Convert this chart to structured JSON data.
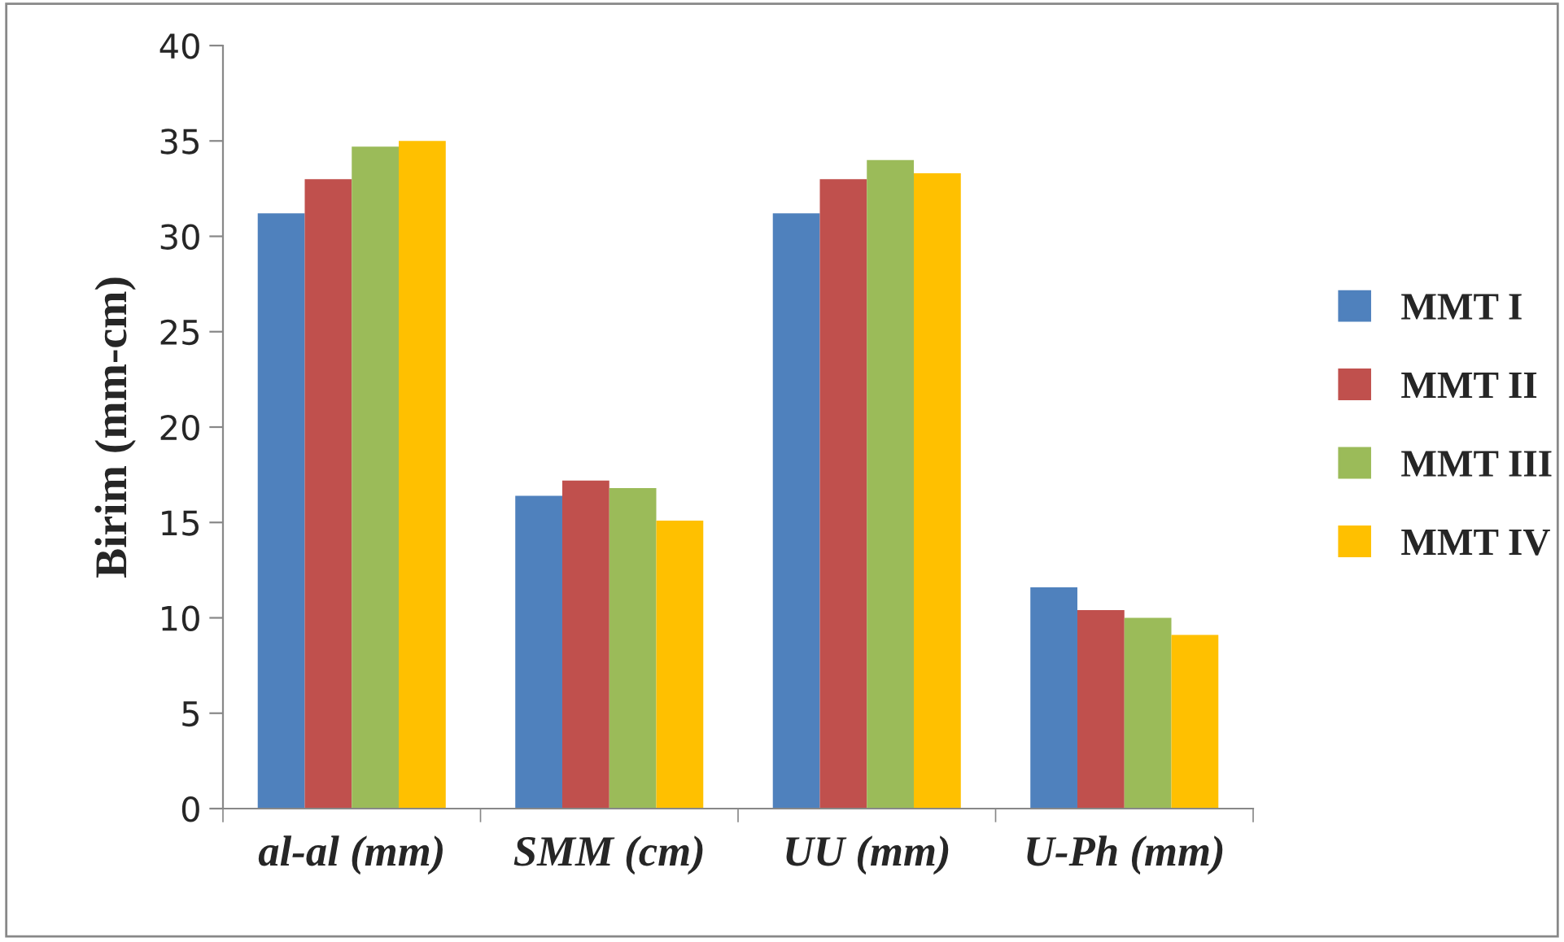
{
  "chart_data": {
    "type": "bar",
    "ylabel": "Birim (mm-cm)",
    "categories": [
      "al-al (mm)",
      "SMM (cm)",
      "UU (mm)",
      "U-Ph (mm)"
    ],
    "series": [
      {
        "name": "MMT I",
        "color": "#4f81bd",
        "values": [
          31.2,
          16.4,
          31.2,
          11.6
        ]
      },
      {
        "name": "MMT II",
        "color": "#c0504d",
        "values": [
          33.0,
          17.2,
          33.0,
          10.4
        ]
      },
      {
        "name": "MMT III",
        "color": "#9bbb59",
        "values": [
          34.7,
          16.8,
          34.0,
          10.0
        ]
      },
      {
        "name": "MMT IV",
        "color": "#ffc000",
        "values": [
          35.0,
          15.1,
          33.3,
          9.1
        ]
      }
    ],
    "ylim": [
      0,
      40
    ],
    "yticks": [
      0,
      5,
      10,
      15,
      20,
      25,
      30,
      35,
      40
    ],
    "grid": false,
    "legend": "right"
  }
}
